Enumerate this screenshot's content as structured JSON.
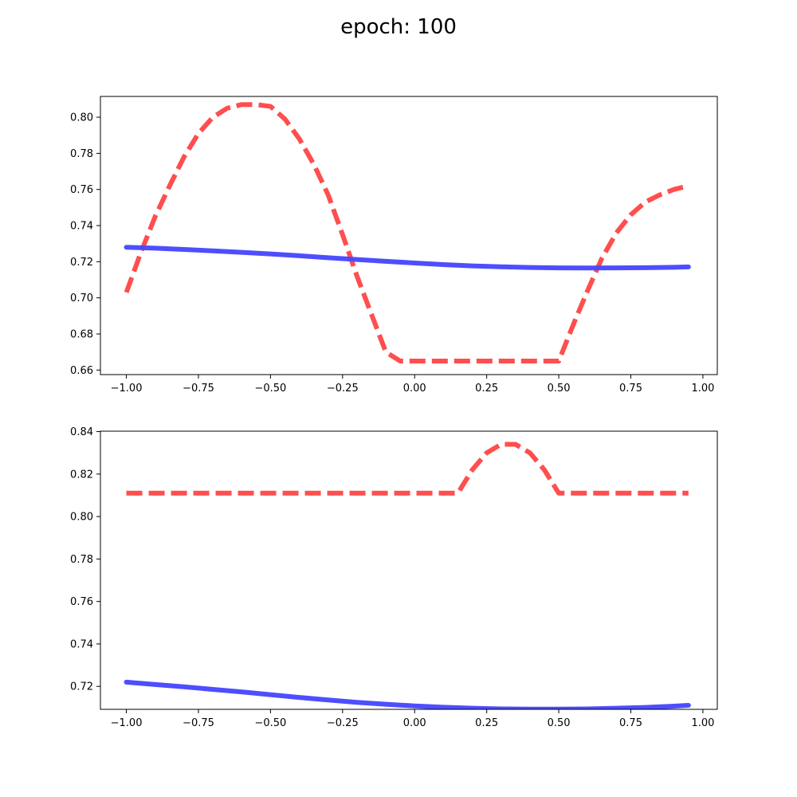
{
  "figure": {
    "title": "epoch: 100"
  },
  "chart_data": [
    {
      "type": "line",
      "title": "",
      "xlabel": "",
      "ylabel": "",
      "xlim": [
        -1.09,
        1.05
      ],
      "ylim": [
        0.6575,
        0.8115
      ],
      "xticks": [
        -1.0,
        -0.75,
        -0.5,
        -0.25,
        0.0,
        0.25,
        0.5,
        0.75,
        1.0
      ],
      "xtick_labels": [
        "−1.00",
        "−0.75",
        "−0.50",
        "−0.25",
        "0.00",
        "0.25",
        "0.50",
        "0.75",
        "1.00"
      ],
      "yticks": [
        0.66,
        0.68,
        0.7,
        0.72,
        0.74,
        0.76,
        0.78,
        0.8
      ],
      "ytick_labels": [
        "0.66",
        "0.68",
        "0.70",
        "0.72",
        "0.74",
        "0.76",
        "0.78",
        "0.80"
      ],
      "grid": false,
      "series": [
        {
          "color": "#ff4a4a",
          "style": "dashed",
          "x": [
            -1.0,
            -0.95,
            -0.9,
            -0.85,
            -0.8,
            -0.75,
            -0.7,
            -0.65,
            -0.6,
            -0.55,
            -0.5,
            -0.45,
            -0.4,
            -0.35,
            -0.3,
            -0.25,
            -0.2,
            -0.15,
            -0.1,
            -0.05,
            0.0,
            0.05,
            0.1,
            0.15,
            0.2,
            0.25,
            0.3,
            0.35,
            0.4,
            0.45,
            0.5,
            0.55,
            0.6,
            0.65,
            0.7,
            0.75,
            0.8,
            0.85,
            0.9,
            0.95
          ],
          "y": [
            0.703,
            0.725,
            0.745,
            0.762,
            0.778,
            0.791,
            0.8,
            0.805,
            0.807,
            0.807,
            0.806,
            0.799,
            0.788,
            0.774,
            0.757,
            0.735,
            0.712,
            0.691,
            0.67,
            0.665,
            0.665,
            0.665,
            0.665,
            0.665,
            0.665,
            0.665,
            0.665,
            0.665,
            0.665,
            0.665,
            0.665,
            0.685,
            0.704,
            0.722,
            0.736,
            0.746,
            0.753,
            0.757,
            0.76,
            0.762
          ]
        },
        {
          "color": "#4a4aff",
          "style": "solid",
          "x": [
            -1.0,
            -0.9,
            -0.8,
            -0.7,
            -0.6,
            -0.5,
            -0.4,
            -0.3,
            -0.2,
            -0.1,
            0.0,
            0.1,
            0.2,
            0.3,
            0.4,
            0.5,
            0.6,
            0.7,
            0.8,
            0.9,
            0.95
          ],
          "y": [
            0.728,
            0.7275,
            0.7268,
            0.726,
            0.7252,
            0.7243,
            0.7233,
            0.7222,
            0.7212,
            0.7202,
            0.7193,
            0.7184,
            0.7177,
            0.7172,
            0.7168,
            0.7166,
            0.7165,
            0.7166,
            0.7167,
            0.7169,
            0.7171
          ]
        }
      ]
    },
    {
      "type": "line",
      "title": "",
      "xlabel": "",
      "ylabel": "",
      "xlim": [
        -1.09,
        1.05
      ],
      "ylim": [
        0.7092,
        0.8402
      ],
      "xticks": [
        -1.0,
        -0.75,
        -0.5,
        -0.25,
        0.0,
        0.25,
        0.5,
        0.75,
        1.0
      ],
      "xtick_labels": [
        "−1.00",
        "−0.75",
        "−0.50",
        "−0.25",
        "0.00",
        "0.25",
        "0.50",
        "0.75",
        "1.00"
      ],
      "yticks": [
        0.72,
        0.74,
        0.76,
        0.78,
        0.8,
        0.82,
        0.84
      ],
      "ytick_labels": [
        "0.72",
        "0.74",
        "0.76",
        "0.78",
        "0.80",
        "0.82",
        "0.84"
      ],
      "grid": false,
      "series": [
        {
          "color": "#ff4a4a",
          "style": "dashed",
          "x": [
            -1.0,
            -0.9,
            -0.8,
            -0.7,
            -0.6,
            -0.5,
            -0.4,
            -0.3,
            -0.2,
            -0.1,
            0.0,
            0.05,
            0.1,
            0.15,
            0.2,
            0.25,
            0.3,
            0.35,
            0.4,
            0.45,
            0.5,
            0.6,
            0.7,
            0.8,
            0.9,
            0.95
          ],
          "y": [
            0.811,
            0.811,
            0.811,
            0.811,
            0.811,
            0.811,
            0.811,
            0.811,
            0.811,
            0.811,
            0.811,
            0.811,
            0.811,
            0.811,
            0.822,
            0.83,
            0.834,
            0.834,
            0.83,
            0.822,
            0.811,
            0.811,
            0.811,
            0.811,
            0.811,
            0.811
          ]
        },
        {
          "color": "#4a4aff",
          "style": "solid",
          "x": [
            -1.0,
            -0.9,
            -0.8,
            -0.7,
            -0.6,
            -0.5,
            -0.4,
            -0.3,
            -0.2,
            -0.1,
            0.0,
            0.1,
            0.2,
            0.3,
            0.4,
            0.5,
            0.6,
            0.7,
            0.8,
            0.9,
            0.95
          ],
          "y": [
            0.722,
            0.7209,
            0.7198,
            0.7186,
            0.7174,
            0.7161,
            0.7148,
            0.7136,
            0.7125,
            0.7116,
            0.7108,
            0.7102,
            0.7097,
            0.7094,
            0.7093,
            0.7093,
            0.7094,
            0.7097,
            0.7101,
            0.7107,
            0.7111
          ]
        }
      ]
    }
  ]
}
